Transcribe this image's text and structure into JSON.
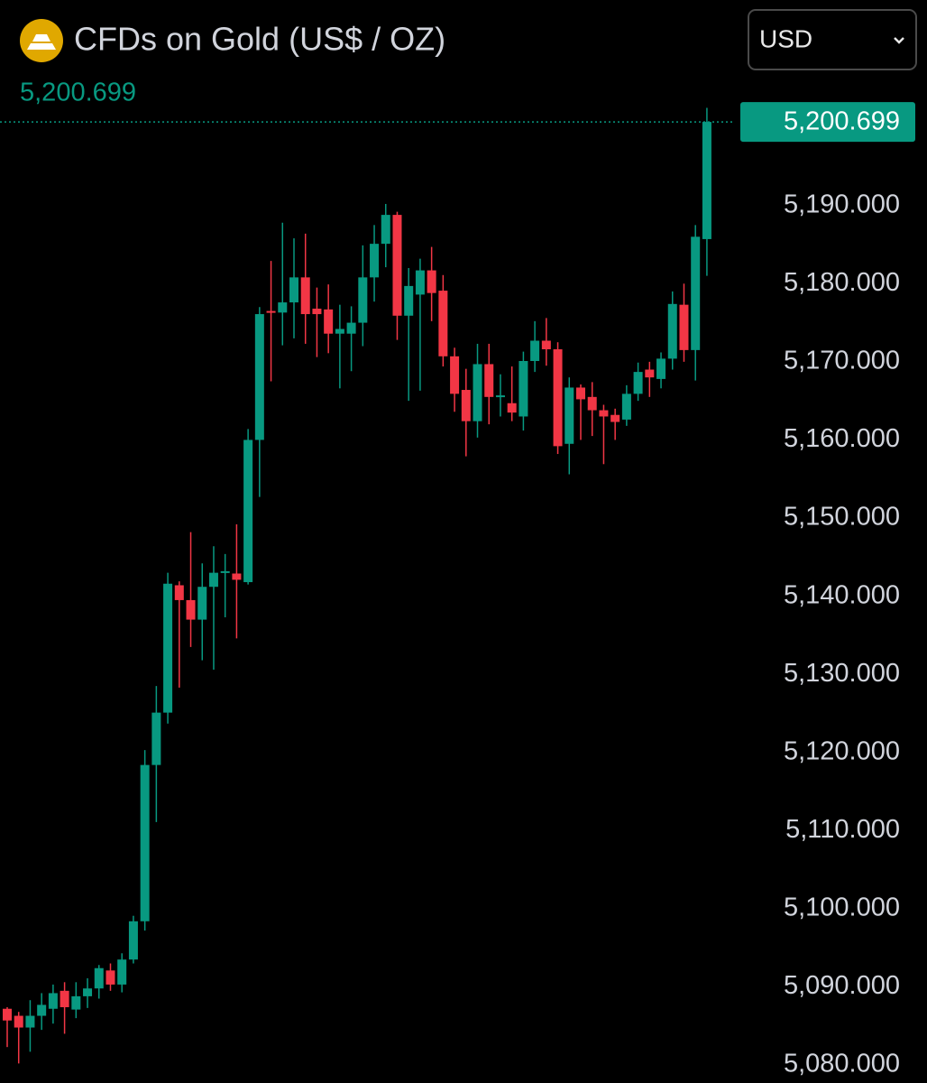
{
  "header": {
    "title": "CFDs on Gold (US$ / OZ)",
    "currency": "USD"
  },
  "chart_data": {
    "type": "candlestick",
    "last_price": {
      "value": 5200.699,
      "label": "5,200.699"
    },
    "up_color": "#089981",
    "down_color": "#f23645",
    "ylim": [
      5077.7,
      5216.3
    ],
    "yticks": [
      {
        "value": 5080,
        "label": "5,080.000"
      },
      {
        "value": 5090,
        "label": "5,090.000"
      },
      {
        "value": 5100,
        "label": "5,100.000"
      },
      {
        "value": 5110,
        "label": "5,110.000"
      },
      {
        "value": 5120,
        "label": "5,120.000"
      },
      {
        "value": 5130,
        "label": "5,130.000"
      },
      {
        "value": 5140,
        "label": "5,140.000"
      },
      {
        "value": 5150,
        "label": "5,150.000"
      },
      {
        "value": 5160,
        "label": "5,160.000"
      },
      {
        "value": 5170,
        "label": "5,170.000"
      },
      {
        "value": 5180,
        "label": "5,180.000"
      },
      {
        "value": 5190,
        "label": "5,190.000"
      }
    ],
    "open": [
      5087.2,
      5086.3,
      5084.8,
      5086.3,
      5087.2,
      5089.5,
      5087.1,
      5088.8,
      5089.8,
      5092.1,
      5090.3,
      5093.5,
      5098.4,
      5118.4,
      5125.1,
      5141.4,
      5139.5,
      5137.0,
      5141.2,
      5143.0,
      5142.9,
      5141.8,
      5160.0,
      5176.5,
      5176.3,
      5177.6,
      5180.8,
      5176.8,
      5176.7,
      5173.6,
      5173.6,
      5175.0,
      5180.8,
      5185.1,
      5188.8,
      5175.9,
      5178.6,
      5181.7,
      5179.1,
      5170.7,
      5166.4,
      5162.4,
      5169.7,
      5165.5,
      5164.7,
      5163.0,
      5170.1,
      5172.7,
      5171.6,
      5159.5,
      5166.7,
      5165.5,
      5163.8,
      5163.2,
      5162.6,
      5165.9,
      5169.0,
      5167.8,
      5170.4,
      5177.3,
      5171.5,
      5185.7
    ],
    "high": [
      5087.4,
      5086.8,
      5088.3,
      5089.2,
      5090.3,
      5090.6,
      5090.6,
      5091.1,
      5092.8,
      5093.0,
      5094.3,
      5099.1,
      5120.3,
      5128.5,
      5143.0,
      5141.9,
      5148.2,
      5144.2,
      5146.4,
      5145.4,
      5149.2,
      5161.4,
      5177.0,
      5182.9,
      5187.8,
      5185.8,
      5186.4,
      5179.5,
      5179.9,
      5177.3,
      5177.1,
      5184.9,
      5187.5,
      5190.2,
      5189.2,
      5182.0,
      5183.2,
      5184.7,
      5181.1,
      5171.8,
      5169.1,
      5172.3,
      5172.3,
      5168.4,
      5169.4,
      5171.3,
      5175.2,
      5175.6,
      5172.5,
      5168.0,
      5167.1,
      5167.4,
      5164.5,
      5164.0,
      5167.0,
      5169.9,
      5170.0,
      5171.2,
      5179.0,
      5180.0,
      5187.5,
      5202.5
    ],
    "low": [
      5082.3,
      5080.2,
      5081.7,
      5084.5,
      5085.3,
      5084.0,
      5086.0,
      5087.3,
      5088.5,
      5089.5,
      5089.3,
      5093.0,
      5097.2,
      5111.1,
      5123.7,
      5128.3,
      5133.5,
      5131.8,
      5130.6,
      5137.3,
      5134.6,
      5141.5,
      5152.7,
      5167.5,
      5172.1,
      5173.0,
      5172.3,
      5170.6,
      5171.1,
      5166.6,
      5168.8,
      5172.0,
      5177.7,
      5182.1,
      5172.8,
      5165.0,
      5166.3,
      5175.2,
      5169.4,
      5163.6,
      5157.9,
      5160.3,
      5162.0,
      5163.0,
      5162.4,
      5161.2,
      5168.7,
      5169.5,
      5158.2,
      5155.6,
      5160.0,
      5160.5,
      5156.9,
      5160.0,
      5161.8,
      5165.0,
      5165.5,
      5166.6,
      5169.0,
      5170.0,
      5167.6,
      5181.0
    ],
    "close": [
      5085.7,
      5084.8,
      5086.3,
      5087.7,
      5089.2,
      5087.4,
      5088.8,
      5089.8,
      5092.4,
      5090.3,
      5093.5,
      5098.4,
      5118.4,
      5125.1,
      5141.6,
      5139.5,
      5137.0,
      5141.2,
      5143.0,
      5143.2,
      5142.1,
      5160.0,
      5176.1,
      5176.3,
      5177.6,
      5180.8,
      5176.1,
      5176.1,
      5173.6,
      5174.2,
      5175.0,
      5180.8,
      5185.1,
      5188.8,
      5175.9,
      5179.7,
      5181.7,
      5178.8,
      5170.7,
      5165.9,
      5162.4,
      5169.7,
      5165.5,
      5165.7,
      5163.5,
      5170.1,
      5172.7,
      5171.6,
      5159.2,
      5166.7,
      5165.2,
      5163.8,
      5163.0,
      5162.3,
      5165.9,
      5168.7,
      5168.0,
      5170.4,
      5177.4,
      5171.5,
      5186.0,
      5200.699
    ]
  }
}
